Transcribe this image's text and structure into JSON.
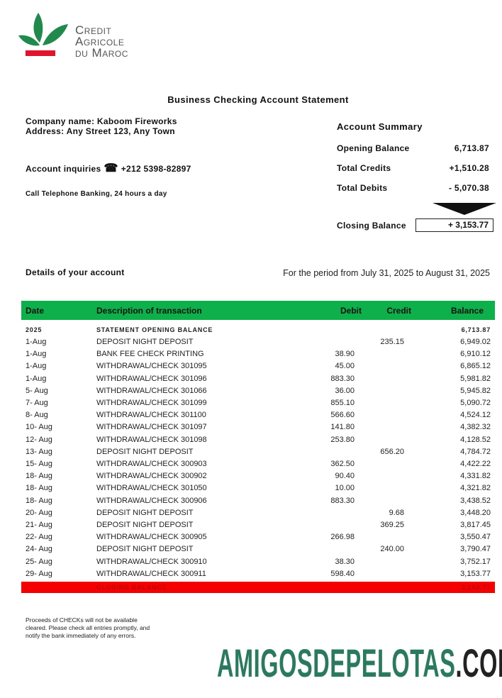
{
  "brand": {
    "name_lines": [
      "Credit",
      "Agricole",
      "du Maroc"
    ],
    "colors": {
      "leaf": "#1f8a4c",
      "bar": "#e0142c",
      "text": "#555555"
    }
  },
  "document": {
    "title": "Business Checking Account Statement",
    "company_name": "Company name: Kaboom Fireworks",
    "address": "Address: Any Street 123, Any Town",
    "inquiries_label": "Account inquiries",
    "phone_icon": "telephone-icon",
    "phone": "+212 5398-82897",
    "telephone_banking": "Call Telephone Banking, 24 hours a day",
    "details_label": "Details of your account",
    "period": "For the period from July 31, 2025 to August 31, 2025"
  },
  "summary": {
    "title": "Account Summary",
    "opening_label": "Opening Balance",
    "opening_value": "6,713.87",
    "credits_label": "Total Credits",
    "credits_value": "+1,510.28",
    "debits_label": "Total Debits",
    "debits_value": "- 5,070.38",
    "closing_label": "Closing Balance",
    "closing_value": "+ 3,153.77"
  },
  "table": {
    "header_color": "#0db04b",
    "closing_color": "#f40000",
    "headers": [
      "Date",
      "Description of transaction",
      "Debit",
      "Credit",
      "Balance"
    ],
    "opening_row": {
      "date": "2025",
      "desc": "STATEMENT OPENING BALANCE",
      "balance": "6,713.87"
    },
    "rows": [
      {
        "date": "1-Aug",
        "desc": "DEPOSIT NIGHT DEPOSIT",
        "debit": "",
        "credit": "235.15",
        "balance": "6,949.02"
      },
      {
        "date": "1-Aug",
        "desc": "BANK FEE CHECK PRINTING",
        "debit": "38.90",
        "credit": "",
        "balance": "6,910.12"
      },
      {
        "date": "1-Aug",
        "desc": "WITHDRAWAL/CHECK 301095",
        "debit": "45.00",
        "credit": "",
        "balance": "6,865.12"
      },
      {
        "date": "1-Aug",
        "desc": "WITHDRAWAL/CHECK 301096",
        "debit": "883.30",
        "credit": "",
        "balance": "5,981.82"
      },
      {
        "date": "5- Aug",
        "desc": "WITHDRAWAL/CHECK 301066",
        "debit": "36.00",
        "credit": "",
        "balance": "5,945.82"
      },
      {
        "date": "7- Aug",
        "desc": "WITHDRAWAL/CHECK 301099",
        "debit": "855.10",
        "credit": "",
        "balance": "5,090.72"
      },
      {
        "date": "8- Aug",
        "desc": "WITHDRAWAL/CHECK 301100",
        "debit": "566.60",
        "credit": "",
        "balance": "4,524.12"
      },
      {
        "date": "10- Aug",
        "desc": "WITHDRAWAL/CHECK 301097",
        "debit": "141.80",
        "credit": "",
        "balance": "4,382.32"
      },
      {
        "date": "12- Aug",
        "desc": "WITHDRAWAL/CHECK 301098",
        "debit": "253.80",
        "credit": "",
        "balance": "4,128.52"
      },
      {
        "date": "13- Aug",
        "desc": "DEPOSIT NIGHT DEPOSIT",
        "debit": "",
        "credit": "656.20",
        "balance": "4,784.72"
      },
      {
        "date": "15- Aug",
        "desc": "WITHDRAWAL/CHECK 300903",
        "debit": "362.50",
        "credit": "",
        "balance": "4,422.22"
      },
      {
        "date": "18- Aug",
        "desc": "WITHDRAWAL/CHECK 300902",
        "debit": "90.40",
        "credit": "",
        "balance": "4,331.82"
      },
      {
        "date": "18- Aug",
        "desc": "WITHDRAWAL/CHECK 301050",
        "debit": "10.00",
        "credit": "",
        "balance": "4,321.82"
      },
      {
        "date": "18- Aug",
        "desc": "WITHDRAWAL/CHECK 300906",
        "debit": "883.30",
        "credit": "",
        "balance": "3,438.52"
      },
      {
        "date": "20- Aug",
        "desc": "DEPOSIT NIGHT DEPOSIT",
        "debit": "",
        "credit": "9.68",
        "balance": "3,448.20"
      },
      {
        "date": "21- Aug",
        "desc": "DEPOSIT NIGHT DEPOSIT",
        "debit": "",
        "credit": "369.25",
        "balance": "3,817.45"
      },
      {
        "date": "22- Aug",
        "desc": "WITHDRAWAL/CHECK 300905",
        "debit": "266.98",
        "credit": "",
        "balance": "3,550.47"
      },
      {
        "date": "24- Aug",
        "desc": "DEPOSIT NIGHT DEPOSIT",
        "debit": "",
        "credit": "240.00",
        "balance": "3,790.47"
      },
      {
        "date": "25- Aug",
        "desc": "WITHDRAWAL/CHECK 300910",
        "debit": "38.30",
        "credit": "",
        "balance": "3,752.17"
      },
      {
        "date": "29- Aug",
        "desc": "WITHDRAWAL/CHECK 300911",
        "debit": "598.40",
        "credit": "",
        "balance": "3,153.77"
      }
    ],
    "closing_row": {
      "desc": "CLOSING BALANCE",
      "balance": "3,153.77"
    }
  },
  "footer": {
    "note_lines": [
      "Proceeds of CHECKs will not be available",
      "cleared. Please check all entries promptly, and",
      "notify the bank immediately of any errors."
    ]
  },
  "watermark": {
    "main": "AMIGOSDEPELOTAS",
    "suffix": ".COM",
    "main_color": "#2a7a5e",
    "suffix_color": "#222222"
  }
}
